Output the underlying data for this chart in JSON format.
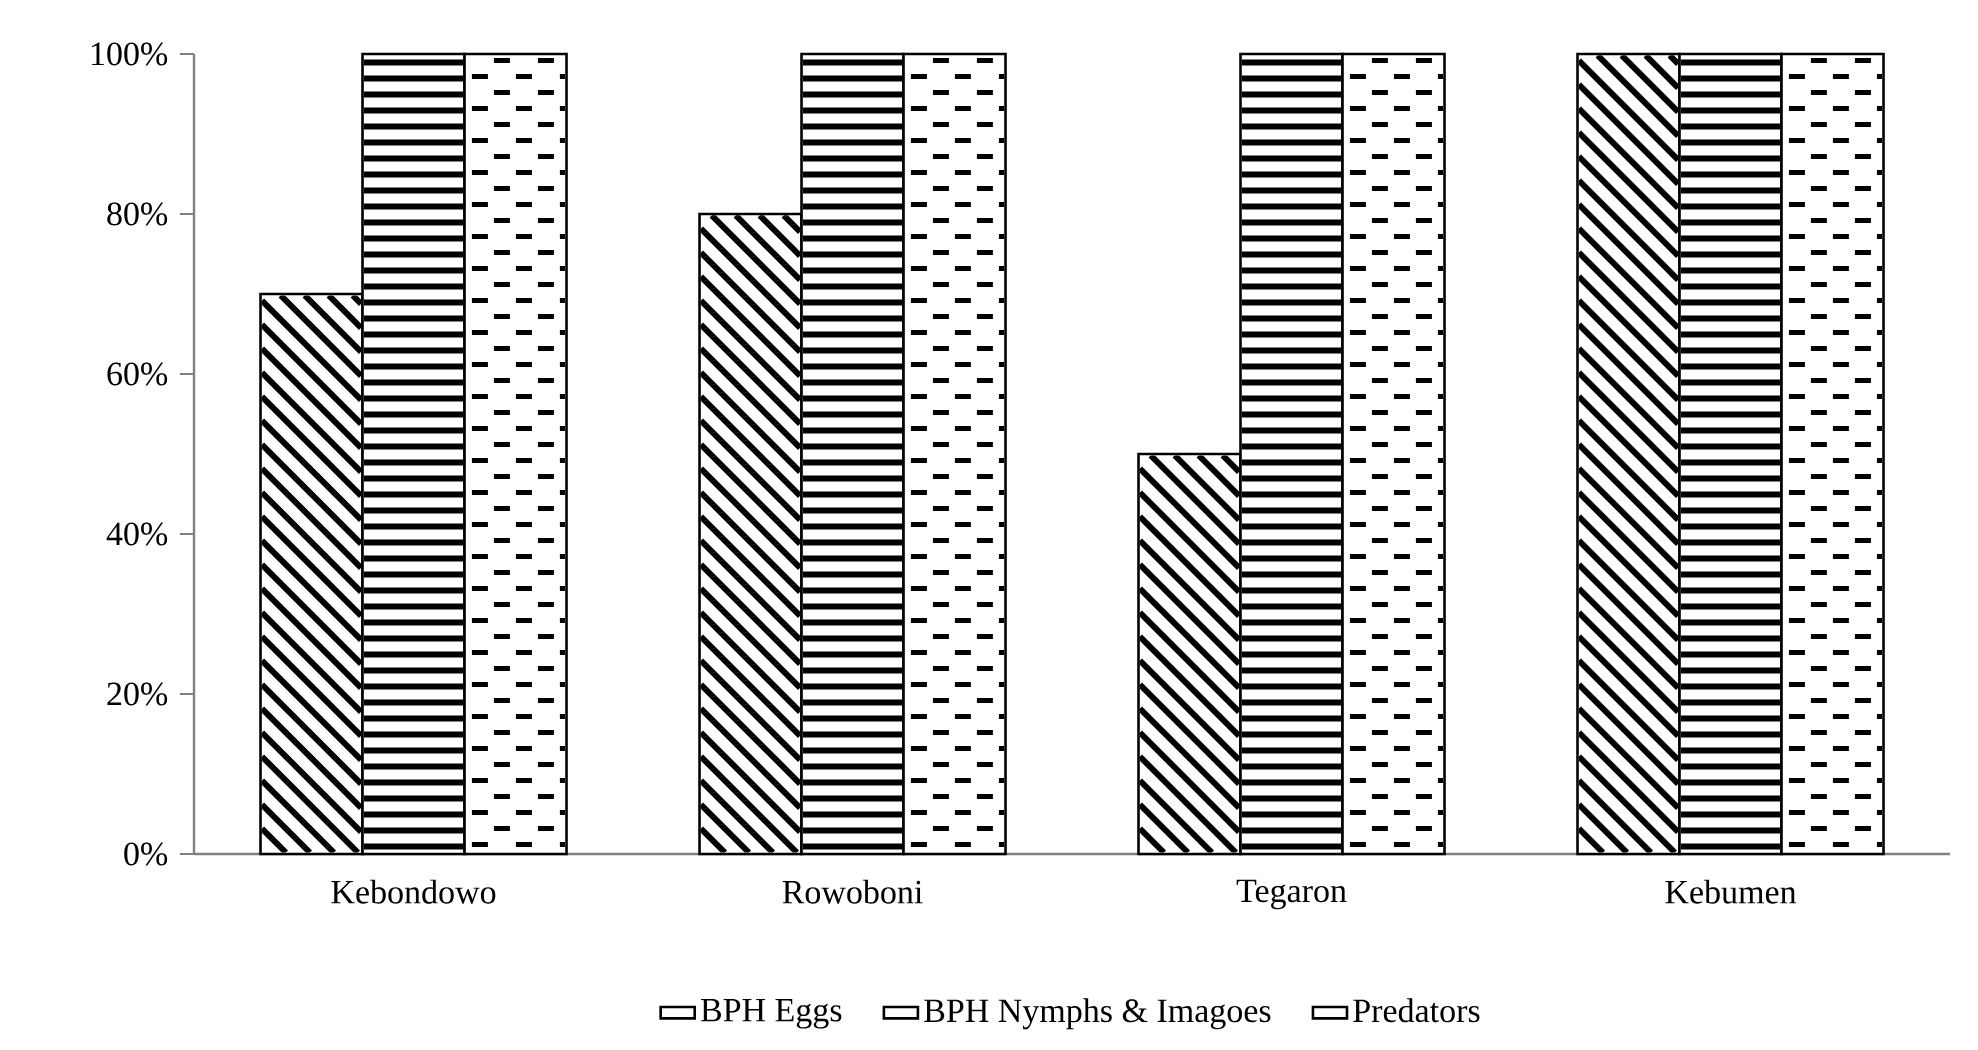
{
  "chart_data": {
    "type": "bar",
    "categories": [
      "Kebondowo",
      "Rowoboni",
      "Tegaron",
      "Kebumen"
    ],
    "series": [
      {
        "name": "BPH Eggs",
        "color": "#000000",
        "values": [
          70,
          80,
          50,
          100
        ]
      },
      {
        "name": "BPH Nymphs & Imagoes",
        "color": "#000000",
        "values": [
          100,
          100,
          100,
          100
        ]
      },
      {
        "name": "Predators",
        "color": "#000000",
        "values": [
          100,
          100,
          100,
          100
        ]
      }
    ],
    "ylim": [
      0,
      100
    ],
    "yticks": [
      {
        "value": 0,
        "label": "0%"
      },
      {
        "value": 20,
        "label": "20%"
      },
      {
        "value": 40,
        "label": "40%"
      },
      {
        "value": 60,
        "label": "60%"
      },
      {
        "value": 80,
        "label": "80%"
      },
      {
        "value": 100,
        "label": "100%"
      }
    ],
    "grid": false,
    "legend": "bottom"
  }
}
